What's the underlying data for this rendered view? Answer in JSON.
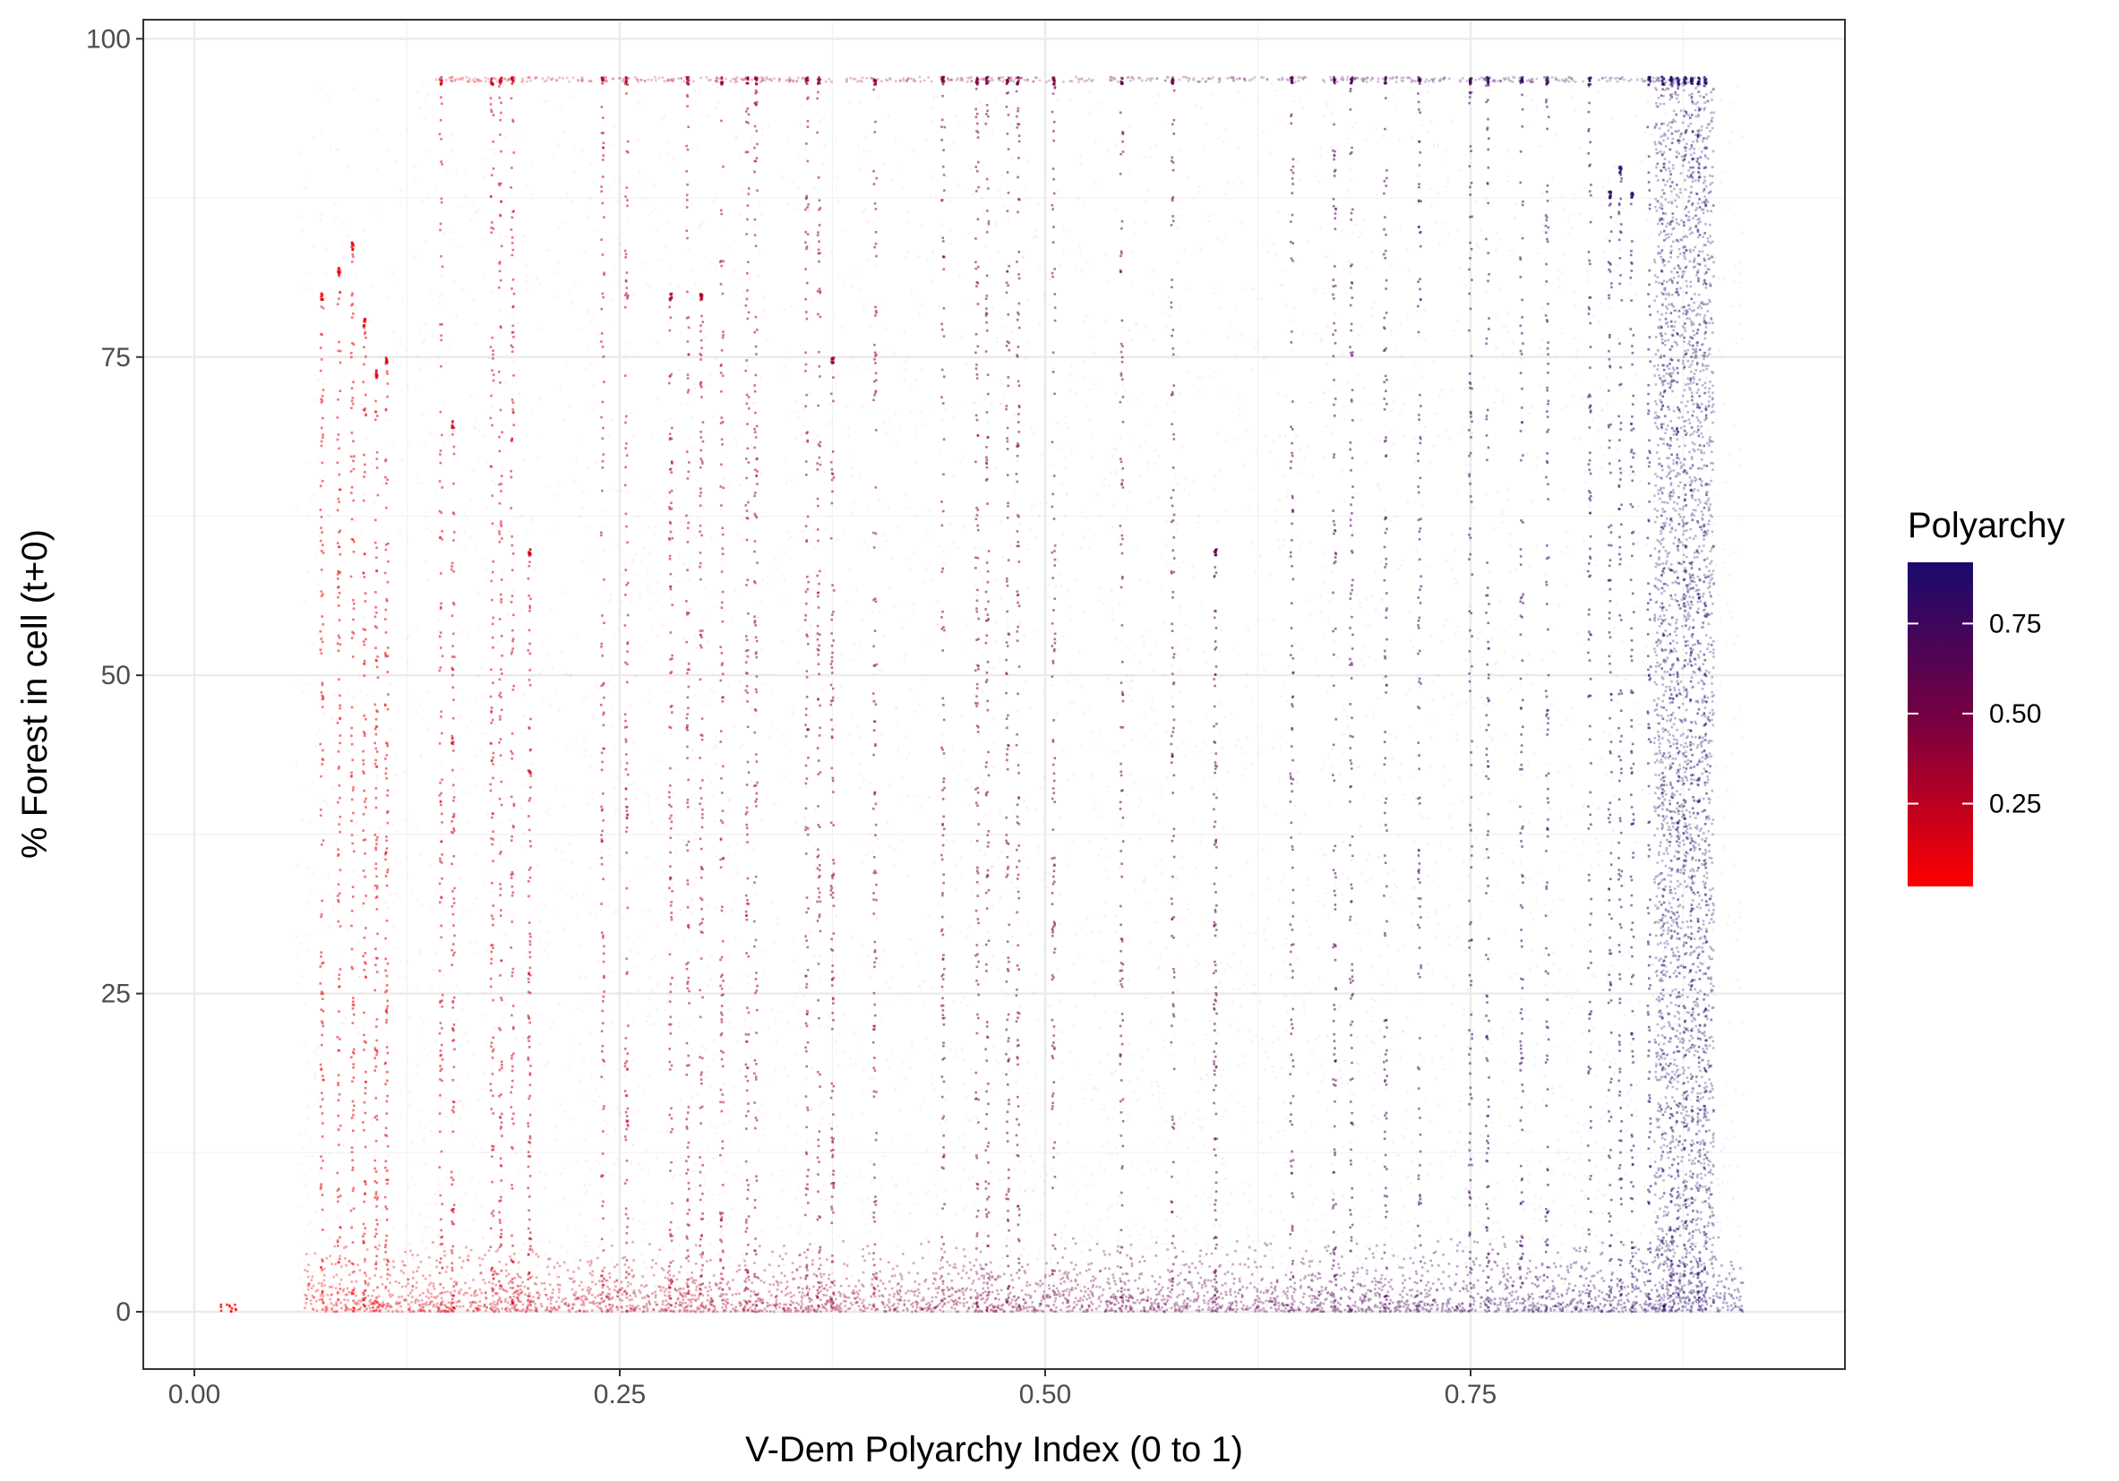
{
  "chart_data": {
    "type": "scatter",
    "title": "",
    "xlabel": "V-Dem Polyarchy Index (0 to 1)",
    "ylabel": "% Forest in cell (t+0)",
    "xlim": [
      -0.03,
      0.97
    ],
    "ylim": [
      -4.5,
      101.5
    ],
    "x_ticks": [
      0,
      0.25,
      0.5,
      0.75
    ],
    "x_tick_labels": [
      "0.00",
      "0.25",
      "0.50",
      "0.75"
    ],
    "y_ticks": [
      0,
      25,
      50,
      75,
      100
    ],
    "y_tick_labels": [
      "0",
      "25",
      "50",
      "75",
      "100"
    ],
    "grid": true,
    "color_encoding": "x",
    "color_low": "#FF0000",
    "color_high": "#1A0A6E",
    "legend": {
      "title": "Polyarchy",
      "placement": "right",
      "range": [
        0.02,
        0.92
      ],
      "ticks": [
        0.25,
        0.5,
        0.75
      ],
      "tick_labels": [
        "0.25",
        "0.50",
        "0.75"
      ]
    },
    "series": [
      {
        "x_range": [
          0.015,
          0.91
        ],
        "y_range": [
          0,
          97
        ],
        "strong_columns": [
          {
            "x": 0.075,
            "ymax": 80
          },
          {
            "x": 0.085,
            "ymax": 82
          },
          {
            "x": 0.093,
            "ymax": 84
          },
          {
            "x": 0.1,
            "ymax": 78
          },
          {
            "x": 0.107,
            "ymax": 74
          },
          {
            "x": 0.113,
            "ymax": 75
          },
          {
            "x": 0.145,
            "ymax": 97
          },
          {
            "x": 0.152,
            "ymax": 70
          },
          {
            "x": 0.175,
            "ymax": 97
          },
          {
            "x": 0.18,
            "ymax": 97
          },
          {
            "x": 0.187,
            "ymax": 97
          },
          {
            "x": 0.197,
            "ymax": 60
          },
          {
            "x": 0.24,
            "ymax": 97
          },
          {
            "x": 0.254,
            "ymax": 97
          },
          {
            "x": 0.28,
            "ymax": 80
          },
          {
            "x": 0.29,
            "ymax": 97
          },
          {
            "x": 0.298,
            "ymax": 80
          },
          {
            "x": 0.31,
            "ymax": 97
          },
          {
            "x": 0.325,
            "ymax": 97
          },
          {
            "x": 0.33,
            "ymax": 97
          },
          {
            "x": 0.36,
            "ymax": 97
          },
          {
            "x": 0.367,
            "ymax": 97
          },
          {
            "x": 0.375,
            "ymax": 75
          },
          {
            "x": 0.4,
            "ymax": 97
          },
          {
            "x": 0.44,
            "ymax": 97
          },
          {
            "x": 0.46,
            "ymax": 97
          },
          {
            "x": 0.466,
            "ymax": 97
          },
          {
            "x": 0.478,
            "ymax": 97
          },
          {
            "x": 0.484,
            "ymax": 97
          },
          {
            "x": 0.505,
            "ymax": 97
          },
          {
            "x": 0.545,
            "ymax": 97
          },
          {
            "x": 0.575,
            "ymax": 97
          },
          {
            "x": 0.6,
            "ymax": 60
          },
          {
            "x": 0.645,
            "ymax": 97
          },
          {
            "x": 0.67,
            "ymax": 97
          },
          {
            "x": 0.68,
            "ymax": 97
          },
          {
            "x": 0.7,
            "ymax": 97
          },
          {
            "x": 0.72,
            "ymax": 97
          },
          {
            "x": 0.75,
            "ymax": 97
          },
          {
            "x": 0.76,
            "ymax": 97
          },
          {
            "x": 0.78,
            "ymax": 97
          },
          {
            "x": 0.795,
            "ymax": 97
          },
          {
            "x": 0.82,
            "ymax": 97
          },
          {
            "x": 0.832,
            "ymax": 88
          },
          {
            "x": 0.838,
            "ymax": 90
          },
          {
            "x": 0.845,
            "ymax": 88
          },
          {
            "x": 0.855,
            "ymax": 97
          },
          {
            "x": 0.863,
            "ymax": 97
          },
          {
            "x": 0.868,
            "ymax": 97
          },
          {
            "x": 0.872,
            "ymax": 97
          },
          {
            "x": 0.876,
            "ymax": 97
          },
          {
            "x": 0.88,
            "ymax": 97
          },
          {
            "x": 0.884,
            "ymax": 97
          },
          {
            "x": 0.888,
            "ymax": 97
          }
        ]
      }
    ]
  }
}
